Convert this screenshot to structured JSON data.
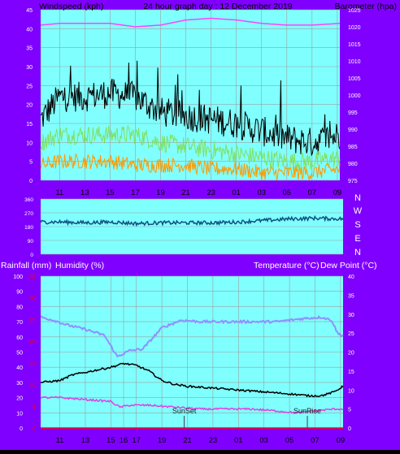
{
  "header": {
    "left_label": "Windspeed (kph)",
    "center_label": "24 hour graph day : 12 December 2019",
    "right_label": "Barometer (hpa)"
  },
  "colors": {
    "panel_bg": "#80ffff",
    "side_bg": "#8000ff",
    "grid": "#9aa0a0",
    "wind_gust": "#000000",
    "wind_avg": "#80e060",
    "wind_low": "#ff9900",
    "barometer": "#ff40ff",
    "direction": "#105080",
    "humidity": "#9090ff",
    "temperature": "#000000",
    "dew_point": "#e040e0",
    "rain_axis": "#ff0000"
  },
  "direction_labels": [
    "N",
    "W",
    "S",
    "E",
    "N"
  ],
  "lower_header": {
    "rainfall": "Rainfall (mm)",
    "humidity": "Humidity (%)",
    "temperature": "Temperature (°C)",
    "dew_point": "Dew Point (°C)"
  },
  "annotations": {
    "sunset": "SunSet",
    "sunrise": "SunRise"
  },
  "chart_data": [
    {
      "type": "line",
      "title": "24 hour graph day : 12 December 2019",
      "ylabel": "Windspeed (kph)",
      "y2label": "Barometer (hpa)",
      "xlabels": [
        "11",
        "13",
        "15",
        "17",
        "19",
        "21",
        "23",
        "01",
        "03",
        "05",
        "07",
        "09"
      ],
      "x_range_hours": [
        9.5,
        33.2
      ],
      "ylim": [
        0,
        45
      ],
      "yticks": [
        0,
        5,
        10,
        15,
        20,
        25,
        30,
        35,
        40,
        45
      ],
      "y2lim": [
        975,
        1025
      ],
      "y2ticks": [
        975,
        980,
        985,
        990,
        995,
        1000,
        1005,
        1010,
        1015,
        1020,
        1025
      ],
      "grid": true,
      "series": [
        {
          "role": "wind_gust",
          "knots": [
            [
              9.5,
              16
            ],
            [
              11,
              22
            ],
            [
              13,
              22
            ],
            [
              15,
              23
            ],
            [
              17,
              22
            ],
            [
              18,
              20
            ],
            [
              19,
              18
            ],
            [
              21,
              17
            ],
            [
              23,
              16
            ],
            [
              25,
              15
            ],
            [
              27,
              13
            ],
            [
              29,
              11
            ],
            [
              31,
              10
            ],
            [
              33.2,
              12
            ]
          ],
          "amplitude": 4
        },
        {
          "role": "wind_average",
          "knots": [
            [
              9.5,
              10
            ],
            [
              11,
              12
            ],
            [
              13,
              12
            ],
            [
              15,
              12
            ],
            [
              17,
              12
            ],
            [
              19,
              10
            ],
            [
              21,
              9
            ],
            [
              23,
              8
            ],
            [
              25,
              7
            ],
            [
              27,
              6
            ],
            [
              29,
              5
            ],
            [
              31,
              5
            ],
            [
              33.2,
              6
            ]
          ],
          "amplitude": 2.5
        },
        {
          "role": "wind_low",
          "knots": [
            [
              9.5,
              4
            ],
            [
              11,
              5
            ],
            [
              13,
              5
            ],
            [
              15,
              5
            ],
            [
              17,
              4
            ],
            [
              19,
              4
            ],
            [
              21,
              4
            ],
            [
              23,
              3
            ],
            [
              25,
              3
            ],
            [
              27,
              2
            ],
            [
              29,
              2
            ],
            [
              31,
              2
            ],
            [
              33.2,
              3
            ]
          ],
          "amplitude": 2
        },
        {
          "role": "barometer",
          "knots": [
            [
              9.5,
              1020.5
            ],
            [
              11,
              1021
            ],
            [
              13,
              1021
            ],
            [
              15,
              1021
            ],
            [
              17,
              1020
            ],
            [
              19,
              1020.5
            ],
            [
              21,
              1022
            ],
            [
              23,
              1022.5
            ],
            [
              25,
              1022
            ],
            [
              27,
              1021
            ],
            [
              29,
              1020.5
            ],
            [
              31,
              1020.5
            ],
            [
              33.2,
              1021
            ]
          ]
        }
      ]
    },
    {
      "type": "line",
      "title": "Wind direction",
      "ylabels": [
        "360",
        "270",
        "180",
        "90",
        "0"
      ],
      "ylim": [
        0,
        360
      ],
      "series": [
        {
          "role": "direction",
          "knots": [
            [
              9.5,
              210
            ],
            [
              11,
              210
            ],
            [
              13,
              205
            ],
            [
              15,
              210
            ],
            [
              17,
              200
            ],
            [
              19,
              205
            ],
            [
              21,
              205
            ],
            [
              23,
              205
            ],
            [
              25,
              210
            ],
            [
              27,
              220
            ],
            [
              29,
              230
            ],
            [
              31,
              235
            ],
            [
              33.2,
              230
            ]
          ],
          "amplitude": 12
        }
      ]
    },
    {
      "type": "line",
      "xlabels": [
        "11",
        "13",
        "15",
        "16",
        "17",
        "19",
        "21",
        "23",
        "01",
        "03",
        "05",
        "07",
        "09"
      ],
      "x_range_hours": [
        9.5,
        33.2
      ],
      "rainfall_ticks": [
        0,
        5,
        10,
        15,
        20,
        25,
        30,
        35
      ],
      "humidity_ticks": [
        0,
        10,
        20,
        30,
        40,
        50,
        60,
        70,
        80,
        90,
        100
      ],
      "temperature_ticks": [
        0,
        5,
        10,
        15,
        20,
        25,
        30,
        35,
        40
      ],
      "grid": true,
      "sunset_hour": 20.75,
      "sunrise_hour": 30.4,
      "series": [
        {
          "role": "humidity",
          "knots": [
            [
              9.5,
              73
            ],
            [
              10.5,
              71
            ],
            [
              11.5,
              68
            ],
            [
              13,
              65
            ],
            [
              14.5,
              61
            ],
            [
              15.5,
              47
            ],
            [
              16.5,
              51
            ],
            [
              17.5,
              52
            ],
            [
              19,
              66
            ],
            [
              20.5,
              71
            ],
            [
              22,
              70
            ],
            [
              24,
              70
            ],
            [
              26,
              70
            ],
            [
              28,
              70
            ],
            [
              30,
              72
            ],
            [
              31.5,
              73
            ],
            [
              32.3,
              71
            ],
            [
              32.8,
              62
            ],
            [
              33.2,
              61
            ]
          ]
        },
        {
          "role": "temperature",
          "knots": [
            [
              9.5,
              12
            ],
            [
              11,
              12.5
            ],
            [
              12,
              14
            ],
            [
              13.5,
              15
            ],
            [
              15,
              16
            ],
            [
              16,
              17
            ],
            [
              17,
              16.5
            ],
            [
              18,
              15
            ],
            [
              19,
              12.5
            ],
            [
              20,
              11.5
            ],
            [
              21,
              11
            ],
            [
              23,
              10.5
            ],
            [
              25,
              10
            ],
            [
              27,
              9.5
            ],
            [
              29,
              9
            ],
            [
              30.5,
              8.5
            ],
            [
              31.5,
              8.5
            ],
            [
              32.5,
              9.5
            ],
            [
              33.2,
              11
            ]
          ]
        },
        {
          "role": "dew_point",
          "knots": [
            [
              9.5,
              8
            ],
            [
              11,
              8
            ],
            [
              13,
              7.5
            ],
            [
              15,
              7
            ],
            [
              15.7,
              5.5
            ],
            [
              16.5,
              6
            ],
            [
              18,
              6
            ],
            [
              20,
              5.5
            ],
            [
              22,
              5
            ],
            [
              24,
              5
            ],
            [
              26,
              5
            ],
            [
              28,
              4.5
            ],
            [
              29.5,
              4
            ],
            [
              31,
              4.5
            ],
            [
              32.5,
              5
            ],
            [
              33.2,
              5
            ]
          ]
        },
        {
          "role": "rainfall",
          "values": [
            [
              9.5,
              0
            ],
            [
              33.2,
              0
            ]
          ]
        }
      ]
    }
  ]
}
